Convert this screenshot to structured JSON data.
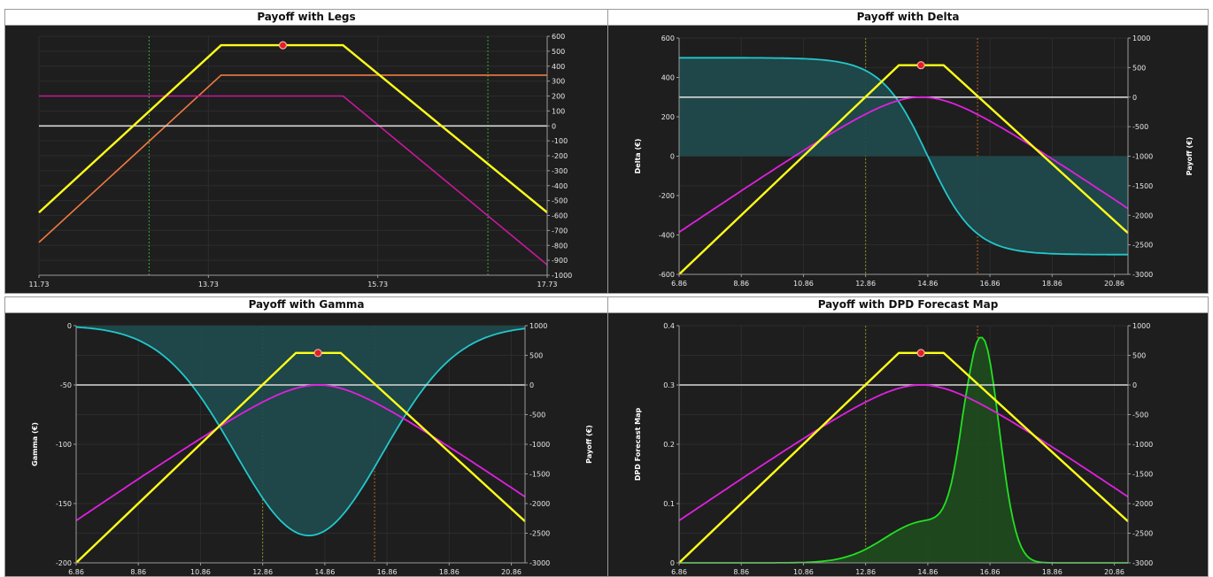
{
  "colors": {
    "background": "#1e1e1e",
    "payoff": "#ffff1a",
    "white_line": "#d8d8d8",
    "magenta": "#e020e0",
    "orange_leg": "#f07a40",
    "purple_leg": "#c8189c",
    "cyan": "#22c8cc",
    "cyan_fill": "#1f4a4c",
    "green": "#22e022",
    "green_fill": "#1f4a1f",
    "gridline": "#2c2c2c",
    "marker": "#e02020",
    "vline_green": "#3aa83a",
    "vline_yellow": "#8a8a20",
    "vline_orange": "#c06020"
  },
  "chart_data": [
    {
      "type": "line",
      "title": "Payoff with Legs",
      "x_ticks": [
        "11.73",
        "13.73",
        "15.73",
        "17.73"
      ],
      "xlim": [
        11.73,
        17.73
      ],
      "y_right_ticks": [
        "600",
        "500",
        "400",
        "300",
        "200",
        "100",
        "0",
        "-100",
        "-200",
        "-300",
        "-400",
        "-500",
        "-600",
        "-700",
        "-800",
        "-900",
        "-1000"
      ],
      "y_right_lim": [
        -1000,
        600
      ],
      "vlines": [
        13.03,
        17.03
      ],
      "marker": {
        "x": 14.61,
        "y": 540
      },
      "series": [
        {
          "role": "payoff",
          "x": [
            11.73,
            13.88,
            15.32,
            17.73
          ],
          "y": [
            -580,
            540,
            540,
            -580
          ]
        },
        {
          "role": "leg1",
          "x": [
            11.73,
            13.88,
            17.73
          ],
          "y": [
            -780,
            340,
            340
          ]
        },
        {
          "role": "leg2",
          "x": [
            11.73,
            15.32,
            17.73
          ],
          "y": [
            200,
            200,
            -930
          ]
        },
        {
          "role": "zero",
          "x": [
            11.73,
            17.73
          ],
          "y": [
            0,
            0
          ]
        }
      ]
    },
    {
      "type": "line",
      "title": "Payoff with Delta",
      "ylabel": "Delta (€)",
      "y2label": "Payoff (€)",
      "x_ticks": [
        "6.86",
        "8.86",
        "10.86",
        "12.86",
        "14.86",
        "16.86",
        "18.86",
        "20.86"
      ],
      "xlim": [
        6.86,
        21.3
      ],
      "y_left_ticks": [
        "600",
        "400",
        "200",
        "0",
        "-200",
        "-400",
        "-600"
      ],
      "y_left_lim": [
        -600,
        600
      ],
      "y_right_ticks": [
        "1000",
        "500",
        "0",
        "-500",
        "-1000",
        "-1500",
        "-2000",
        "-2500",
        "-3000"
      ],
      "y_right_lim": [
        -3000,
        1000
      ],
      "vlines": [
        12.86,
        16.46
      ],
      "marker": {
        "x": 14.64,
        "y": 540
      },
      "delta_curve": {
        "amplitude": 500,
        "center": 14.86,
        "width": 1.5
      },
      "magenta_curve": {
        "peak_x": 14.65,
        "peak_y": 0,
        "width": 2.2,
        "scale": 360
      },
      "series": [
        {
          "role": "payoff",
          "x": [
            6.86,
            13.93,
            15.37,
            21.3
          ],
          "y": [
            -3000,
            540,
            540,
            -2300
          ]
        },
        {
          "role": "zero",
          "x": [
            6.86,
            21.3
          ],
          "y": [
            0,
            0
          ]
        }
      ]
    },
    {
      "type": "line",
      "title": "Payoff with Gamma",
      "ylabel": "Gamma (€)",
      "y2label": "Payoff (€)",
      "x_ticks": [
        "6.86",
        "8.86",
        "10.86",
        "12.86",
        "14.86",
        "16.86",
        "18.86",
        "20.86"
      ],
      "xlim": [
        6.86,
        21.3
      ],
      "y_left_ticks": [
        "0",
        "-50",
        "-100",
        "-150",
        "-200"
      ],
      "y_left_lim": [
        -200,
        0
      ],
      "y_right_ticks": [
        "1000",
        "500",
        "0",
        "-500",
        "-1000",
        "-1500",
        "-2000",
        "-2500",
        "-3000"
      ],
      "y_right_lim": [
        -3000,
        1000
      ],
      "vlines": [
        12.86,
        16.46
      ],
      "marker": {
        "x": 14.64,
        "y": 540
      },
      "gamma_curve": {
        "min": -177,
        "center": 14.35,
        "width": 2.6
      },
      "magenta_curve": {
        "peak_x": 14.65,
        "peak_y": 0,
        "width": 2.2,
        "scale": 360
      },
      "series": [
        {
          "role": "payoff",
          "x": [
            6.86,
            13.93,
            15.37,
            21.3
          ],
          "y": [
            -3000,
            540,
            540,
            -2300
          ]
        },
        {
          "role": "zero",
          "x": [
            6.86,
            21.3
          ],
          "y": [
            0,
            0
          ]
        }
      ]
    },
    {
      "type": "line",
      "title": "Payoff with DPD Forecast Map",
      "ylabel": "DPD Forecast Map",
      "x_ticks": [
        "6.86",
        "8.86",
        "10.86",
        "12.86",
        "14.86",
        "16.86",
        "18.86",
        "20.86"
      ],
      "xlim": [
        6.86,
        21.3
      ],
      "y_left_ticks": [
        "0.4",
        "0.3",
        "0.2",
        "0.1",
        "0"
      ],
      "y_left_lim": [
        0,
        0.4
      ],
      "y_right_ticks": [
        "1000",
        "500",
        "0",
        "-500",
        "-1000",
        "-1500",
        "-2000",
        "-2500",
        "-3000"
      ],
      "y_right_lim": [
        -3000,
        1000
      ],
      "vlines": [
        12.86,
        16.46
      ],
      "marker": {
        "x": 14.64,
        "y": 540
      },
      "dpd_curve": {
        "peak": 0.38,
        "center": 16.6,
        "width": 0.55,
        "tail_amp": 0.07,
        "tail_center": 14.8,
        "tail_width": 1.3
      },
      "magenta_curve": {
        "peak_x": 14.65,
        "peak_y": 0,
        "width": 2.2,
        "scale": 360
      },
      "series": [
        {
          "role": "payoff",
          "x": [
            6.86,
            13.93,
            15.37,
            21.3
          ],
          "y": [
            -3000,
            540,
            540,
            -2300
          ]
        },
        {
          "role": "zero",
          "x": [
            6.86,
            21.3
          ],
          "y": [
            0,
            0
          ]
        }
      ]
    }
  ]
}
